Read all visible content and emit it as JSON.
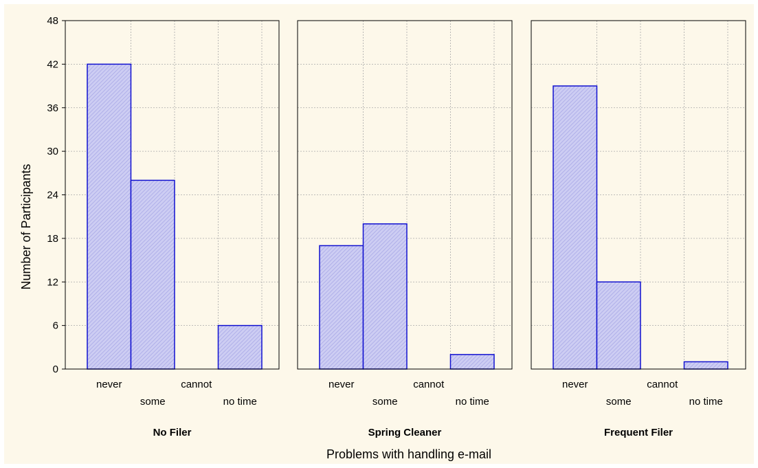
{
  "chart_data": {
    "type": "bar",
    "xlabel": "Problems with handling e-mail",
    "ylabel": "Number of Participants",
    "ylim": [
      0,
      48
    ],
    "yticks": [
      0,
      6,
      12,
      18,
      24,
      30,
      36,
      42,
      48
    ],
    "grid": true,
    "categories": [
      "never",
      "some",
      "cannot",
      "no time"
    ],
    "panels": [
      {
        "title": "No Filer",
        "values": [
          42,
          26,
          0,
          6
        ]
      },
      {
        "title": "Spring Cleaner",
        "values": [
          17,
          20,
          0,
          2
        ]
      },
      {
        "title": "Frequent Filer",
        "values": [
          39,
          12,
          0,
          1
        ]
      }
    ],
    "colors": {
      "bar_fill": "#c8c8f0",
      "bar_stroke": "#1010d0",
      "background": "#fdf8ea"
    }
  }
}
